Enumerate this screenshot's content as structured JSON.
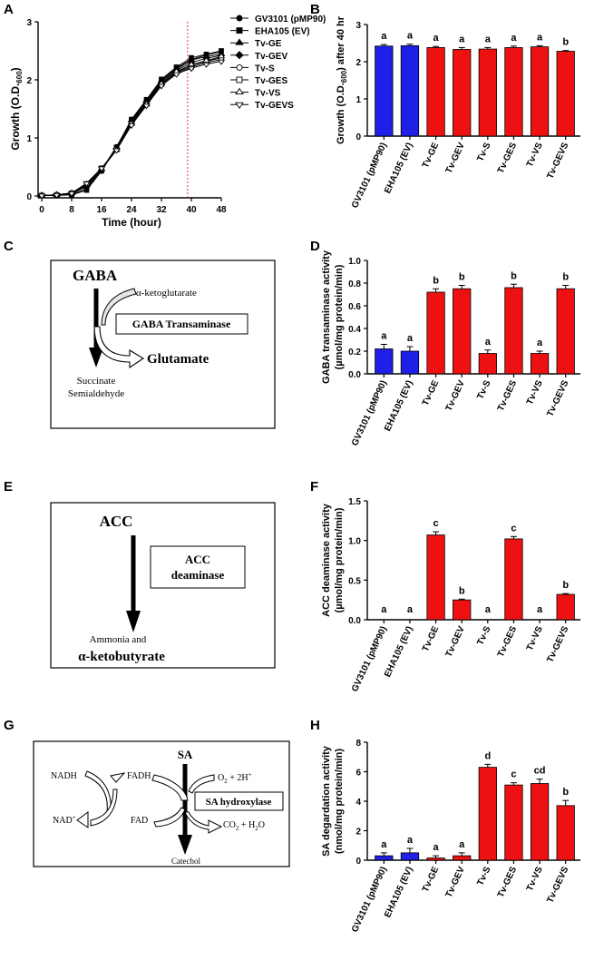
{
  "panel_letters": {
    "a": "A",
    "b": "B",
    "c": "C",
    "d": "D",
    "e": "E",
    "f": "F",
    "g": "G",
    "h": "H"
  },
  "colors": {
    "blue": "#1f1fe6",
    "red": "#ee1111",
    "dashed_line": "#ee3333"
  },
  "diagram_c": {
    "substrate": "GABA",
    "cosubstrate": "α-ketoglutarate",
    "enzyme": "GABA Transaminase",
    "product": "Glutamate",
    "product2_line1": "Succinate",
    "product2_line2": "Semialdehyde"
  },
  "diagram_e": {
    "substrate": "ACC",
    "enzyme_line1": "ACC",
    "enzyme_line2": "deaminase",
    "product_line1": "Ammonia and",
    "product_line2": "α-ketobutyrate"
  },
  "diagram_g": {
    "nadh": "NADH",
    "fadh": "FADH",
    "nad": "NAD",
    "nad_sup": "+",
    "fad": "FAD",
    "substrate": "SA",
    "o2_pre": "O",
    "o2_sub": "2",
    "o2_post": " + 2H",
    "o2_sup": "+",
    "co2_pre": "CO",
    "co2_sub": "2",
    "co2_post": " + H",
    "h2o_sub": "2",
    "h2o_post": "O",
    "enzyme": "SA hydroxylase",
    "product": "Catechol"
  },
  "chart_data": [
    {
      "panel": "A",
      "type": "line",
      "xlabel": "Time (hour)",
      "ylabel_pre": "Growth (O.D.",
      "ylabel_sub": "600",
      "ylabel_post": ")",
      "xlim": [
        0,
        48
      ],
      "ylim": [
        0,
        3
      ],
      "xticks": [
        "0",
        "8",
        "16",
        "24",
        "32",
        "40",
        "48"
      ],
      "yticks": [
        "0",
        "1",
        "2",
        "3"
      ],
      "marker_line_x": 39,
      "x": [
        0,
        4,
        8,
        12,
        16,
        20,
        24,
        28,
        32,
        36,
        40,
        44,
        48
      ],
      "series": [
        {
          "name": "GV3101 (pMP90)",
          "marker": "circle-filled",
          "values": [
            0.01,
            0.01,
            0.03,
            0.12,
            0.45,
            0.85,
            1.3,
            1.65,
            2.0,
            2.2,
            2.35,
            2.43,
            2.48
          ]
        },
        {
          "name": "EHA105 (EV)",
          "marker": "square-filled",
          "values": [
            0.01,
            0.01,
            0.02,
            0.1,
            0.43,
            0.84,
            1.32,
            1.66,
            2.01,
            2.22,
            2.38,
            2.44,
            2.5
          ]
        },
        {
          "name": "Tv-GE",
          "marker": "triangle-filled",
          "values": [
            0.01,
            0.02,
            0.04,
            0.18,
            0.46,
            0.83,
            1.3,
            1.64,
            1.98,
            2.18,
            2.34,
            2.4,
            2.44
          ]
        },
        {
          "name": "Tv-GEV",
          "marker": "diamond-filled",
          "values": [
            0.01,
            0.02,
            0.04,
            0.16,
            0.44,
            0.82,
            1.28,
            1.62,
            1.96,
            2.16,
            2.3,
            2.37,
            2.42
          ]
        },
        {
          "name": "Tv-S",
          "marker": "circle-open",
          "values": [
            0.01,
            0.02,
            0.05,
            0.2,
            0.47,
            0.8,
            1.26,
            1.6,
            1.94,
            2.13,
            2.25,
            2.32,
            2.38
          ]
        },
        {
          "name": "Tv-GES",
          "marker": "square-open",
          "values": [
            0.01,
            0.02,
            0.05,
            0.21,
            0.48,
            0.8,
            1.25,
            1.58,
            1.92,
            2.12,
            2.22,
            2.3,
            2.35
          ]
        },
        {
          "name": "Tv-VS",
          "marker": "triangle-open",
          "values": [
            0.01,
            0.02,
            0.05,
            0.2,
            0.46,
            0.79,
            1.24,
            1.58,
            1.93,
            2.14,
            2.26,
            2.33,
            2.4
          ]
        },
        {
          "name": "Tv-GEVS",
          "marker": "triangle-down-open",
          "values": [
            0.01,
            0.02,
            0.05,
            0.22,
            0.48,
            0.79,
            1.22,
            1.56,
            1.9,
            2.1,
            2.2,
            2.27,
            2.32
          ]
        }
      ]
    },
    {
      "panel": "B",
      "type": "bar",
      "ylabel_pre": "Growth (O.D.",
      "ylabel_sub": "600",
      "ylabel_post": ") after 40 hr",
      "ylim": [
        0,
        3
      ],
      "yticks": [
        "0",
        "1",
        "2",
        "3"
      ],
      "categories": [
        "GV3101 (pMP90)",
        "EHA105 (EV)",
        "Tv-GE",
        "Tv-GEV",
        "Tv-S",
        "Tv-GES",
        "Tv-VS",
        "Tv-GEVS"
      ],
      "colors": [
        "blue",
        "blue",
        "red",
        "red",
        "red",
        "red",
        "red",
        "red"
      ],
      "values": [
        2.42,
        2.43,
        2.38,
        2.33,
        2.34,
        2.38,
        2.4,
        2.28
      ],
      "errors": [
        0.04,
        0.04,
        0.03,
        0.05,
        0.04,
        0.04,
        0.03,
        0.02
      ],
      "significance": [
        "a",
        "a",
        "a",
        "a",
        "a",
        "a",
        "a",
        "b"
      ]
    },
    {
      "panel": "D",
      "type": "bar",
      "ylabel_line1": "GABA transaminase activity",
      "ylabel_line2": "(µmol/mg protein/min)",
      "ylim": [
        0,
        1.0
      ],
      "yticks": [
        "0.0",
        "0.2",
        "0.4",
        "0.6",
        "0.8",
        "1.0"
      ],
      "categories": [
        "GV3101 (pMP90)",
        "EHA105 (EV)",
        "Tv-GE",
        "Tv-GEV",
        "Tv-S",
        "Tv-GES",
        "Tv-VS",
        "Tv-GEVS"
      ],
      "colors": [
        "blue",
        "blue",
        "red",
        "red",
        "red",
        "red",
        "red",
        "red"
      ],
      "values": [
        0.22,
        0.2,
        0.72,
        0.75,
        0.18,
        0.76,
        0.18,
        0.75
      ],
      "errors": [
        0.04,
        0.04,
        0.03,
        0.03,
        0.03,
        0.03,
        0.02,
        0.03
      ],
      "significance": [
        "a",
        "a",
        "b",
        "b",
        "a",
        "b",
        "a",
        "b"
      ]
    },
    {
      "panel": "F",
      "type": "bar",
      "ylabel_line1": "ACC deaminase activity",
      "ylabel_line2": "(µmol/mg protein/min)",
      "ylim": [
        0,
        1.5
      ],
      "yticks": [
        "0.0",
        "0.5",
        "1.0",
        "1.5"
      ],
      "categories": [
        "GV3101 (pMP90)",
        "EHA105 (EV)",
        "Tv-GE",
        "Tv-GEV",
        "Tv-S",
        "Tv-GES",
        "Tv-VS",
        "Tv-GEVS"
      ],
      "colors": [
        "blue",
        "blue",
        "red",
        "red",
        "red",
        "red",
        "red",
        "red"
      ],
      "values": [
        0,
        0,
        1.07,
        0.25,
        0,
        1.02,
        0,
        0.32
      ],
      "errors": [
        0,
        0,
        0.04,
        0.01,
        0,
        0.03,
        0,
        0.01
      ],
      "significance": [
        "a",
        "a",
        "c",
        "b",
        "a",
        "c",
        "a",
        "b"
      ]
    },
    {
      "panel": "H",
      "type": "bar",
      "ylabel_line1": "SA degardation activity",
      "ylabel_line2": "(nmol/mg protein/min)",
      "ylim": [
        0,
        8
      ],
      "yticks": [
        "0",
        "2",
        "4",
        "6",
        "8"
      ],
      "categories": [
        "GV3101 (pMP90)",
        "EHA105 (EV)",
        "Tv-GE",
        "Tv-GEV",
        "Tv-S",
        "Tv-GES",
        "Tv-VS",
        "Tv-GEVS"
      ],
      "colors": [
        "blue",
        "blue",
        "red",
        "red",
        "red",
        "red",
        "red",
        "red"
      ],
      "values": [
        0.3,
        0.5,
        0.15,
        0.3,
        6.3,
        5.1,
        5.2,
        3.7
      ],
      "errors": [
        0.2,
        0.3,
        0.15,
        0.2,
        0.2,
        0.15,
        0.3,
        0.35
      ],
      "significance": [
        "a",
        "a",
        "a",
        "a",
        "d",
        "c",
        "cd",
        "b"
      ]
    }
  ]
}
